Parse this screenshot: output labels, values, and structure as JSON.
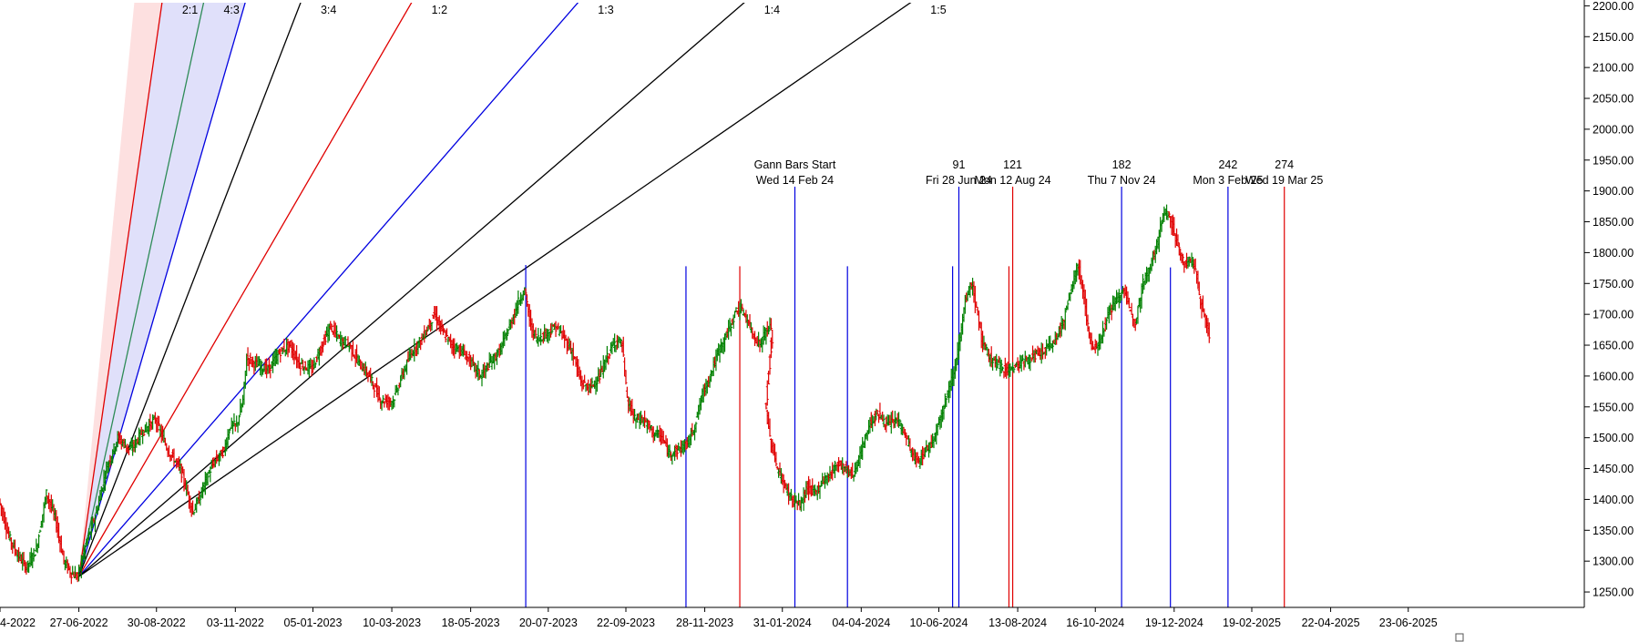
{
  "chart_data": {
    "type": "candlestick_gann",
    "y_axis": {
      "ticks": [
        "2200.00",
        "2150.00",
        "2100.00",
        "2050.00",
        "2000.00",
        "1950.00",
        "1900.00",
        "1850.00",
        "1800.00",
        "1750.00",
        "1700.00",
        "1650.00",
        "1600.00",
        "1550.00",
        "1500.00",
        "1450.00",
        "1400.00",
        "1350.00",
        "1300.00",
        "1250.00"
      ],
      "range": [
        1225,
        2205
      ],
      "side": "right"
    },
    "x_axis": {
      "tick_labels": [
        "4-2022",
        "27-06-2022",
        "30-08-2022",
        "03-11-2022",
        "05-01-2023",
        "10-03-2023",
        "18-05-2023",
        "20-07-2023",
        "22-09-2023",
        "28-11-2023",
        "31-01-2024",
        "04-04-2024",
        "10-06-2024",
        "13-08-2024",
        "16-10-2024",
        "19-12-2024",
        "19-02-2025",
        "22-04-2025",
        "23-06-2025"
      ],
      "tick_positions": [
        0,
        63,
        125,
        188,
        250,
        313,
        376,
        438,
        500,
        563,
        625,
        688,
        750,
        813,
        875,
        938,
        1000,
        1063,
        1125
      ]
    },
    "gann_fan": {
      "origin": {
        "bar": 63,
        "price": 1275
      },
      "angles": [
        {
          "label": "2:1",
          "price_per_bar": 14.0,
          "color": "#e00000",
          "label_shown": true
        },
        {
          "label": "4:3",
          "price_per_bar": 9.333,
          "color": "#2e8b57",
          "label_shown": true
        },
        {
          "label": "",
          "price_per_bar": 7.0,
          "color": "#0000e0",
          "label_shown": false
        },
        {
          "label": "3:4",
          "price_per_bar": 5.25,
          "color": "#000000",
          "label_shown": true
        },
        {
          "label": "1:2",
          "price_per_bar": 3.5,
          "color": "#e00000",
          "label_shown": true
        },
        {
          "label": "1:3",
          "price_per_bar": 2.333,
          "color": "#0000e0",
          "label_shown": true
        },
        {
          "label": "1:4",
          "price_per_bar": 1.75,
          "color": "#000000",
          "label_shown": true
        },
        {
          "label": "1:5",
          "price_per_bar": 1.4,
          "color": "#000000",
          "label_shown": true
        }
      ],
      "fill_upper": "#fde0e0",
      "fill_lower": "#e0e0fa"
    },
    "gann_bars_start": {
      "title": "Gann Bars Start",
      "date": "Wed 14 Feb 24",
      "bar": 635
    },
    "gann_bars": [
      {
        "count": "91",
        "date": "Fri 28 Jun 24",
        "bar": 766,
        "color": "#0000e0"
      },
      {
        "count": "121",
        "date": "Mon 12 Aug 24",
        "bar": 809,
        "color": "#e00000"
      },
      {
        "count": "182",
        "date": "Thu 7 Nov 24",
        "bar": 896,
        "color": "#0000e0"
      },
      {
        "count": "242",
        "date": "Mon 3 Feb 25",
        "bar": 981,
        "color": "#0000e0"
      },
      {
        "count": "274",
        "date": "Wed 19 Mar 25",
        "bar": 1026,
        "color": "#e00000"
      }
    ],
    "short_lines": [
      {
        "bar": 420,
        "color": "#0000e0",
        "top_price": 1780
      },
      {
        "bar": 548,
        "color": "#0000e0",
        "top_price": 1778
      },
      {
        "bar": 591,
        "color": "#e00000",
        "top_price": 1778
      },
      {
        "bar": 677,
        "color": "#0000e0",
        "top_price": 1778
      },
      {
        "bar": 761,
        "color": "#0000e0",
        "top_price": 1778
      },
      {
        "bar": 806,
        "color": "#e00000",
        "top_price": 1778
      },
      {
        "bar": 935,
        "color": "#0000e0",
        "top_price": 1776
      }
    ],
    "price_path": [
      [
        0,
        1400
      ],
      [
        8,
        1340
      ],
      [
        15,
        1310
      ],
      [
        22,
        1290
      ],
      [
        30,
        1320
      ],
      [
        38,
        1410
      ],
      [
        45,
        1370
      ],
      [
        52,
        1300
      ],
      [
        58,
        1280
      ],
      [
        63,
        1275
      ],
      [
        70,
        1330
      ],
      [
        78,
        1380
      ],
      [
        86,
        1450
      ],
      [
        95,
        1500
      ],
      [
        105,
        1480
      ],
      [
        115,
        1510
      ],
      [
        125,
        1530
      ],
      [
        135,
        1480
      ],
      [
        145,
        1450
      ],
      [
        155,
        1380
      ],
      [
        160,
        1400
      ],
      [
        165,
        1430
      ],
      [
        172,
        1460
      ],
      [
        180,
        1480
      ],
      [
        185,
        1520
      ],
      [
        190,
        1520
      ],
      [
        195,
        1560
      ],
      [
        198,
        1630
      ],
      [
        205,
        1620
      ],
      [
        215,
        1610
      ],
      [
        225,
        1640
      ],
      [
        232,
        1650
      ],
      [
        240,
        1620
      ],
      [
        250,
        1610
      ],
      [
        258,
        1650
      ],
      [
        265,
        1680
      ],
      [
        272,
        1660
      ],
      [
        280,
        1650
      ],
      [
        288,
        1620
      ],
      [
        296,
        1600
      ],
      [
        305,
        1560
      ],
      [
        315,
        1560
      ],
      [
        322,
        1600
      ],
      [
        330,
        1640
      ],
      [
        338,
        1660
      ],
      [
        348,
        1700
      ],
      [
        355,
        1670
      ],
      [
        362,
        1650
      ],
      [
        370,
        1640
      ],
      [
        378,
        1620
      ],
      [
        385,
        1600
      ],
      [
        392,
        1620
      ],
      [
        400,
        1640
      ],
      [
        408,
        1680
      ],
      [
        415,
        1720
      ],
      [
        420,
        1740
      ],
      [
        425,
        1680
      ],
      [
        430,
        1660
      ],
      [
        438,
        1670
      ],
      [
        445,
        1680
      ],
      [
        452,
        1660
      ],
      [
        458,
        1640
      ],
      [
        465,
        1590
      ],
      [
        472,
        1580
      ],
      [
        480,
        1600
      ],
      [
        488,
        1640
      ],
      [
        494,
        1660
      ],
      [
        498,
        1650
      ],
      [
        502,
        1560
      ],
      [
        508,
        1530
      ],
      [
        515,
        1530
      ],
      [
        522,
        1510
      ],
      [
        530,
        1500
      ],
      [
        535,
        1475
      ],
      [
        542,
        1480
      ],
      [
        550,
        1490
      ],
      [
        556,
        1520
      ],
      [
        562,
        1570
      ],
      [
        568,
        1600
      ],
      [
        575,
        1640
      ],
      [
        582,
        1670
      ],
      [
        590,
        1710
      ],
      [
        596,
        1700
      ],
      [
        602,
        1670
      ],
      [
        608,
        1650
      ],
      [
        612,
        1670
      ],
      [
        617,
        1680
      ],
      [
        612,
        1560
      ],
      [
        616,
        1500
      ],
      [
        622,
        1450
      ],
      [
        628,
        1420
      ],
      [
        634,
        1400
      ],
      [
        640,
        1390
      ],
      [
        646,
        1420
      ],
      [
        652,
        1410
      ],
      [
        658,
        1430
      ],
      [
        664,
        1440
      ],
      [
        670,
        1460
      ],
      [
        676,
        1450
      ],
      [
        682,
        1440
      ],
      [
        688,
        1470
      ],
      [
        695,
        1520
      ],
      [
        702,
        1540
      ],
      [
        710,
        1520
      ],
      [
        718,
        1530
      ],
      [
        725,
        1500
      ],
      [
        730,
        1470
      ],
      [
        735,
        1460
      ],
      [
        740,
        1480
      ],
      [
        745,
        1490
      ],
      [
        750,
        1520
      ],
      [
        756,
        1560
      ],
      [
        762,
        1600
      ],
      [
        768,
        1660
      ],
      [
        772,
        1720
      ],
      [
        777,
        1750
      ],
      [
        782,
        1700
      ],
      [
        786,
        1650
      ],
      [
        792,
        1630
      ],
      [
        800,
        1615
      ],
      [
        808,
        1610
      ],
      [
        815,
        1620
      ],
      [
        825,
        1630
      ],
      [
        835,
        1640
      ],
      [
        845,
        1660
      ],
      [
        852,
        1700
      ],
      [
        858,
        1750
      ],
      [
        862,
        1780
      ],
      [
        866,
        1740
      ],
      [
        870,
        1680
      ],
      [
        874,
        1640
      ],
      [
        880,
        1660
      ],
      [
        886,
        1700
      ],
      [
        892,
        1720
      ],
      [
        898,
        1740
      ],
      [
        903,
        1710
      ],
      [
        908,
        1690
      ],
      [
        914,
        1750
      ],
      [
        920,
        1780
      ],
      [
        926,
        1820
      ],
      [
        930,
        1860
      ],
      [
        934,
        1865
      ],
      [
        938,
        1840
      ],
      [
        942,
        1810
      ],
      [
        947,
        1780
      ],
      [
        952,
        1790
      ],
      [
        956,
        1770
      ],
      [
        960,
        1720
      ],
      [
        964,
        1690
      ],
      [
        967,
        1665
      ]
    ],
    "price_range": "1250.00 to 2200.00"
  }
}
